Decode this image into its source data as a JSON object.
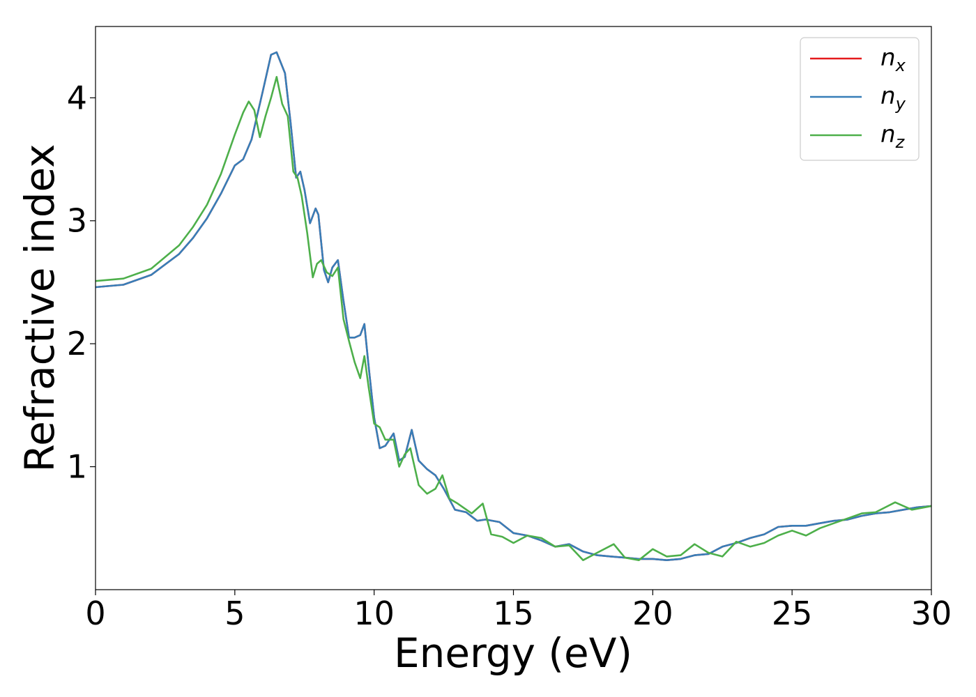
{
  "chart_data": {
    "type": "line",
    "title": "",
    "xlabel": "Energy (eV)",
    "ylabel": "Refractive index",
    "xlim": [
      0,
      30
    ],
    "ylim": [
      0.0,
      4.58
    ],
    "xticks": [
      0,
      5,
      10,
      15,
      20,
      25,
      30
    ],
    "yticks": [
      1,
      2,
      3,
      4
    ],
    "grid": false,
    "legend": {
      "placement": "top-right",
      "entries": [
        {
          "base": "n",
          "sub": "x",
          "color": "#e41a1c"
        },
        {
          "base": "n",
          "sub": "y",
          "color": "#377eb8"
        },
        {
          "base": "n",
          "sub": "z",
          "color": "#4daf4a"
        }
      ]
    },
    "series": [
      {
        "name": "n_x",
        "color": "#e41a1c",
        "x": [
          0,
          1,
          2,
          3,
          3.5,
          4,
          4.5,
          5,
          5.3,
          5.6,
          6.0,
          6.3,
          6.5,
          6.8,
          7.0,
          7.2,
          7.35,
          7.5,
          7.7,
          7.9,
          8.0,
          8.2,
          8.35,
          8.5,
          8.7,
          8.9,
          9.1,
          9.3,
          9.5,
          9.65,
          9.8,
          10.0,
          10.2,
          10.4,
          10.7,
          10.9,
          11.1,
          11.35,
          11.6,
          11.9,
          12.2,
          12.5,
          12.9,
          13.3,
          13.7,
          14.0,
          14.5,
          15.0,
          15.5,
          16.0,
          16.5,
          17.0,
          17.5,
          18.0,
          18.5,
          19.0,
          19.5,
          20.0,
          20.5,
          21.0,
          21.5,
          22.0,
          22.5,
          23.0,
          23.5,
          24.0,
          24.5,
          25.0,
          25.5,
          26.0,
          26.5,
          27.0,
          27.5,
          28.0,
          28.5,
          29.0,
          29.5,
          30.0
        ],
        "y": [
          2.46,
          2.48,
          2.56,
          2.73,
          2.86,
          3.02,
          3.22,
          3.45,
          3.5,
          3.66,
          4.05,
          4.35,
          4.37,
          4.2,
          3.8,
          3.35,
          3.4,
          3.25,
          2.98,
          3.1,
          3.05,
          2.6,
          2.5,
          2.62,
          2.68,
          2.35,
          2.05,
          2.05,
          2.07,
          2.16,
          1.82,
          1.4,
          1.15,
          1.17,
          1.27,
          1.05,
          1.08,
          1.3,
          1.05,
          0.98,
          0.93,
          0.82,
          0.65,
          0.63,
          0.56,
          0.57,
          0.55,
          0.46,
          0.44,
          0.4,
          0.35,
          0.37,
          0.31,
          0.28,
          0.27,
          0.26,
          0.25,
          0.25,
          0.24,
          0.25,
          0.28,
          0.29,
          0.35,
          0.38,
          0.42,
          0.45,
          0.51,
          0.52,
          0.52,
          0.54,
          0.56,
          0.57,
          0.6,
          0.62,
          0.63,
          0.65,
          0.67,
          0.68
        ]
      },
      {
        "name": "n_y",
        "color": "#377eb8",
        "x": [
          0,
          1,
          2,
          3,
          3.5,
          4,
          4.5,
          5,
          5.3,
          5.6,
          6.0,
          6.3,
          6.5,
          6.8,
          7.0,
          7.2,
          7.35,
          7.5,
          7.7,
          7.9,
          8.0,
          8.2,
          8.35,
          8.5,
          8.7,
          8.9,
          9.1,
          9.3,
          9.5,
          9.65,
          9.8,
          10.0,
          10.2,
          10.4,
          10.7,
          10.9,
          11.1,
          11.35,
          11.6,
          11.9,
          12.2,
          12.5,
          12.9,
          13.3,
          13.7,
          14.0,
          14.5,
          15.0,
          15.5,
          16.0,
          16.5,
          17.0,
          17.5,
          18.0,
          18.5,
          19.0,
          19.5,
          20.0,
          20.5,
          21.0,
          21.5,
          22.0,
          22.5,
          23.0,
          23.5,
          24.0,
          24.5,
          25.0,
          25.5,
          26.0,
          26.5,
          27.0,
          27.5,
          28.0,
          28.5,
          29.0,
          29.5,
          30.0
        ],
        "y": [
          2.46,
          2.48,
          2.56,
          2.73,
          2.86,
          3.02,
          3.22,
          3.45,
          3.5,
          3.66,
          4.05,
          4.35,
          4.37,
          4.2,
          3.8,
          3.35,
          3.4,
          3.25,
          2.98,
          3.1,
          3.05,
          2.6,
          2.5,
          2.62,
          2.68,
          2.35,
          2.05,
          2.05,
          2.07,
          2.16,
          1.82,
          1.4,
          1.15,
          1.17,
          1.27,
          1.05,
          1.08,
          1.3,
          1.05,
          0.98,
          0.93,
          0.82,
          0.65,
          0.63,
          0.56,
          0.57,
          0.55,
          0.46,
          0.44,
          0.4,
          0.35,
          0.37,
          0.31,
          0.28,
          0.27,
          0.26,
          0.25,
          0.25,
          0.24,
          0.25,
          0.28,
          0.29,
          0.35,
          0.38,
          0.42,
          0.45,
          0.51,
          0.52,
          0.52,
          0.54,
          0.56,
          0.57,
          0.6,
          0.62,
          0.63,
          0.65,
          0.67,
          0.68
        ]
      },
      {
        "name": "n_z",
        "color": "#4daf4a",
        "x": [
          0,
          1,
          2,
          3,
          3.5,
          4,
          4.5,
          5,
          5.3,
          5.5,
          5.7,
          5.9,
          6.1,
          6.3,
          6.5,
          6.7,
          6.9,
          7.1,
          7.25,
          7.4,
          7.6,
          7.8,
          7.95,
          8.1,
          8.3,
          8.5,
          8.7,
          8.9,
          9.1,
          9.3,
          9.5,
          9.65,
          9.8,
          10.0,
          10.2,
          10.4,
          10.7,
          10.9,
          11.1,
          11.3,
          11.6,
          11.9,
          12.2,
          12.45,
          12.7,
          13.0,
          13.5,
          13.9,
          14.2,
          14.6,
          15.0,
          15.5,
          16.0,
          16.5,
          17.0,
          17.5,
          18.0,
          18.6,
          19.0,
          19.5,
          20.0,
          20.5,
          21.0,
          21.5,
          22.0,
          22.5,
          23.0,
          23.5,
          24.0,
          24.5,
          25.0,
          25.5,
          26.0,
          26.5,
          27.0,
          27.5,
          28.0,
          28.7,
          29.3,
          30.0
        ],
        "y": [
          2.51,
          2.53,
          2.61,
          2.8,
          2.95,
          3.13,
          3.38,
          3.7,
          3.88,
          3.97,
          3.9,
          3.68,
          3.85,
          4.0,
          4.17,
          3.95,
          3.85,
          3.4,
          3.35,
          3.2,
          2.9,
          2.54,
          2.65,
          2.68,
          2.58,
          2.55,
          2.62,
          2.2,
          2.02,
          1.85,
          1.72,
          1.9,
          1.65,
          1.35,
          1.32,
          1.22,
          1.22,
          1.0,
          1.1,
          1.15,
          0.85,
          0.78,
          0.82,
          0.93,
          0.74,
          0.7,
          0.62,
          0.7,
          0.45,
          0.43,
          0.38,
          0.44,
          0.42,
          0.35,
          0.36,
          0.24,
          0.3,
          0.37,
          0.26,
          0.24,
          0.33,
          0.27,
          0.28,
          0.37,
          0.3,
          0.27,
          0.39,
          0.35,
          0.38,
          0.44,
          0.48,
          0.44,
          0.5,
          0.54,
          0.58,
          0.62,
          0.63,
          0.71,
          0.65,
          0.68
        ]
      }
    ]
  }
}
